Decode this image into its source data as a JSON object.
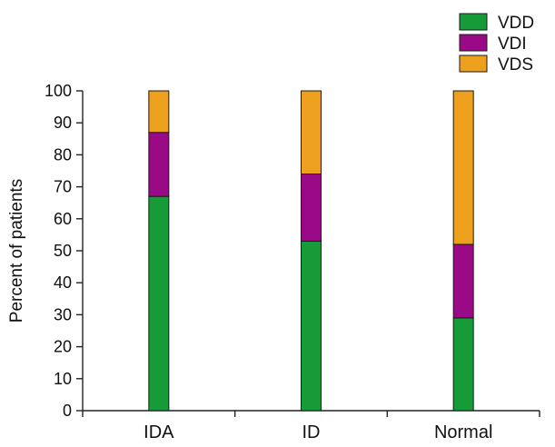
{
  "chart_data": {
    "type": "bar",
    "stacked": true,
    "title": "",
    "xlabel": "",
    "ylabel": "Percent of patients",
    "ylim": [
      0,
      100
    ],
    "yticks": [
      0,
      10,
      20,
      30,
      40,
      50,
      60,
      70,
      80,
      90,
      100
    ],
    "categories": [
      "IDA",
      "ID",
      "Normal"
    ],
    "series": [
      {
        "name": "VDD",
        "color": "#169b38",
        "values": [
          67,
          53,
          29
        ]
      },
      {
        "name": "VDI",
        "color": "#9b0a86",
        "values": [
          20,
          21,
          23
        ]
      },
      {
        "name": "VDS",
        "color": "#eda01e",
        "values": [
          13,
          26,
          48
        ]
      }
    ],
    "legend_position": "top-right",
    "grid": false
  }
}
